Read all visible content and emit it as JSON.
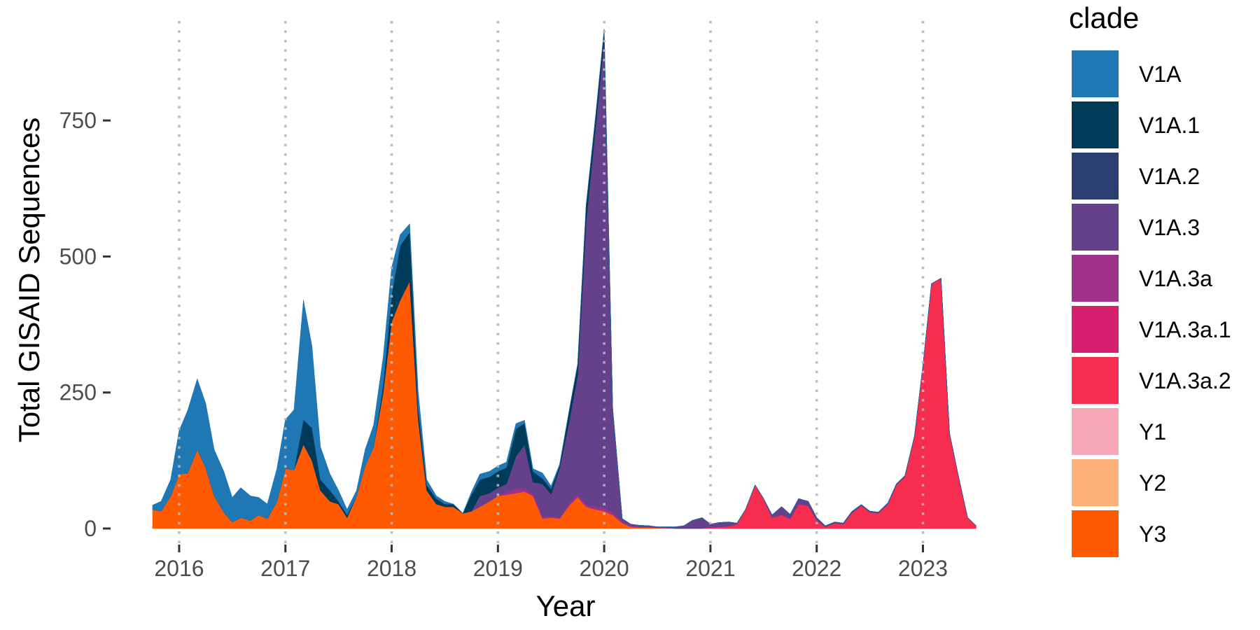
{
  "chart_data": {
    "type": "area",
    "stacked": true,
    "xlabel": "Year",
    "ylabel": "Total GISAID Sequences",
    "xlim": [
      2015.75,
      2023.55
    ],
    "ylim": [
      -45,
      920
    ],
    "x_ticks": [
      2016,
      2017,
      2018,
      2019,
      2020,
      2021,
      2022,
      2023
    ],
    "x_tick_labels": [
      "2016",
      "2017",
      "2018",
      "2019",
      "2020",
      "2021",
      "2022",
      "2023"
    ],
    "y_ticks": [
      0,
      250,
      500,
      750
    ],
    "y_tick_labels": [
      "0",
      "250",
      "500",
      "750"
    ],
    "grid": "vertical dotted at major x ticks",
    "legend": {
      "title": "clade",
      "position": "right"
    },
    "x": [
      2015.75,
      2015.83,
      2015.92,
      2016.0,
      2016.08,
      2016.17,
      2016.25,
      2016.33,
      2016.42,
      2016.5,
      2016.58,
      2016.67,
      2016.75,
      2016.83,
      2016.92,
      2017.0,
      2017.08,
      2017.17,
      2017.25,
      2017.33,
      2017.42,
      2017.5,
      2017.58,
      2017.67,
      2017.75,
      2017.83,
      2017.92,
      2018.0,
      2018.08,
      2018.17,
      2018.25,
      2018.33,
      2018.42,
      2018.5,
      2018.58,
      2018.67,
      2018.75,
      2018.83,
      2018.92,
      2019.0,
      2019.08,
      2019.17,
      2019.25,
      2019.33,
      2019.42,
      2019.5,
      2019.58,
      2019.67,
      2019.75,
      2019.83,
      2019.92,
      2020.0,
      2020.08,
      2020.17,
      2020.25,
      2020.33,
      2020.42,
      2020.5,
      2020.58,
      2020.67,
      2020.75,
      2020.83,
      2020.92,
      2021.0,
      2021.08,
      2021.17,
      2021.25,
      2021.33,
      2021.42,
      2021.5,
      2021.58,
      2021.67,
      2021.75,
      2021.83,
      2021.92,
      2022.0,
      2022.08,
      2022.17,
      2022.25,
      2022.33,
      2022.42,
      2022.5,
      2022.58,
      2022.67,
      2022.75,
      2022.83,
      2022.92,
      2023.0,
      2023.08,
      2023.17,
      2023.25,
      2023.33,
      2023.42,
      2023.5
    ],
    "series": [
      {
        "name": "Y3",
        "color": "#ff5a00",
        "values": [
          35,
          32,
          60,
          100,
          102,
          145,
          112,
          60,
          30,
          12,
          20,
          15,
          25,
          18,
          50,
          110,
          108,
          155,
          125,
          70,
          50,
          45,
          20,
          60,
          115,
          150,
          250,
          380,
          420,
          455,
          200,
          70,
          45,
          40,
          40,
          28,
          32,
          40,
          50,
          60,
          62,
          65,
          68,
          60,
          18,
          20,
          18,
          42,
          58,
          40,
          35,
          32,
          25,
          10,
          3,
          2,
          2,
          1,
          1,
          0,
          0,
          0,
          0,
          0,
          0,
          0,
          0,
          0,
          0,
          0,
          0,
          0,
          0,
          0,
          0,
          0,
          0,
          0,
          0,
          0,
          0,
          0,
          0,
          0,
          0,
          0,
          0,
          0,
          0,
          0,
          0,
          0,
          0,
          0
        ]
      },
      {
        "name": "Y2",
        "color": "#fdb27a",
        "values": [
          0,
          0,
          0,
          0,
          0,
          0,
          0,
          0,
          0,
          0,
          0,
          0,
          0,
          0,
          0,
          0,
          0,
          0,
          0,
          0,
          0,
          0,
          0,
          0,
          0,
          0,
          0,
          0,
          0,
          0,
          0,
          0,
          0,
          0,
          0,
          0,
          0,
          0,
          0,
          0,
          0,
          0,
          0,
          0,
          0,
          0,
          0,
          0,
          0,
          0,
          0,
          0,
          0,
          0,
          0,
          0,
          0,
          0,
          0,
          0,
          0,
          0,
          0,
          0,
          0,
          0,
          0,
          0,
          0,
          0,
          0,
          0,
          0,
          0,
          0,
          0,
          0,
          0,
          0,
          0,
          0,
          0,
          0,
          0,
          0,
          0,
          0,
          0,
          0,
          0,
          0,
          0,
          0,
          0
        ]
      },
      {
        "name": "Y1",
        "color": "#f6a8b8",
        "values": [
          0,
          0,
          0,
          0,
          0,
          0,
          0,
          0,
          0,
          0,
          0,
          0,
          0,
          0,
          0,
          0,
          0,
          0,
          0,
          0,
          0,
          0,
          0,
          0,
          0,
          0,
          0,
          0,
          0,
          0,
          0,
          0,
          0,
          0,
          0,
          0,
          0,
          0,
          0,
          0,
          0,
          0,
          0,
          0,
          0,
          0,
          0,
          0,
          0,
          0,
          0,
          0,
          0,
          0,
          0,
          0,
          0,
          0,
          0,
          0,
          0,
          0,
          0,
          0,
          0,
          0,
          0,
          0,
          0,
          0,
          0,
          0,
          0,
          0,
          0,
          0,
          0,
          0,
          0,
          0,
          0,
          0,
          0,
          0,
          0,
          0,
          0,
          0,
          0,
          0,
          0,
          0,
          0,
          0
        ]
      },
      {
        "name": "V1A.3a.2",
        "color": "#f72d4f",
        "values": [
          0,
          0,
          0,
          0,
          0,
          0,
          0,
          0,
          0,
          0,
          0,
          0,
          0,
          0,
          0,
          0,
          0,
          0,
          0,
          0,
          0,
          0,
          0,
          0,
          0,
          0,
          0,
          0,
          0,
          0,
          0,
          0,
          0,
          0,
          0,
          0,
          0,
          0,
          0,
          0,
          0,
          0,
          0,
          0,
          0,
          0,
          0,
          0,
          0,
          0,
          0,
          0,
          0,
          0,
          0,
          0,
          0,
          0,
          0,
          0,
          0,
          0,
          0,
          2,
          3,
          4,
          8,
          35,
          80,
          55,
          20,
          25,
          18,
          45,
          42,
          15,
          3,
          10,
          8,
          28,
          42,
          30,
          28,
          45,
          80,
          95,
          170,
          300,
          450,
          460,
          175,
          100,
          20,
          5
        ]
      },
      {
        "name": "V1A.3a.1",
        "color": "#d6206f",
        "values": [
          0,
          0,
          0,
          0,
          0,
          0,
          0,
          0,
          0,
          0,
          0,
          0,
          0,
          0,
          0,
          0,
          0,
          0,
          0,
          0,
          0,
          0,
          0,
          0,
          0,
          0,
          0,
          0,
          0,
          0,
          0,
          0,
          0,
          0,
          0,
          0,
          0,
          0,
          0,
          0,
          0,
          0,
          0,
          0,
          0,
          0,
          0,
          0,
          0,
          0,
          0,
          0,
          0,
          0,
          0,
          0,
          0,
          0,
          0,
          0,
          0,
          0,
          0,
          0,
          0,
          0,
          0,
          0,
          0,
          0,
          0,
          0,
          0,
          0,
          0,
          0,
          0,
          0,
          0,
          0,
          0,
          0,
          0,
          0,
          0,
          0,
          0,
          0,
          0,
          0,
          0,
          0,
          0,
          0
        ]
      },
      {
        "name": "V1A.3a",
        "color": "#9e3289",
        "values": [
          0,
          0,
          0,
          0,
          0,
          0,
          0,
          0,
          0,
          0,
          0,
          0,
          0,
          0,
          0,
          0,
          0,
          0,
          0,
          0,
          0,
          0,
          0,
          0,
          0,
          0,
          0,
          0,
          0,
          0,
          0,
          0,
          0,
          0,
          0,
          0,
          0,
          0,
          0,
          0,
          5,
          8,
          6,
          5,
          4,
          3,
          2,
          4,
          4,
          4,
          5,
          6,
          5,
          3,
          2,
          1,
          1,
          0,
          0,
          0,
          0,
          0,
          0,
          0,
          0,
          0,
          0,
          0,
          0,
          0,
          0,
          0,
          0,
          0,
          0,
          0,
          0,
          0,
          0,
          0,
          0,
          0,
          0,
          0,
          0,
          0,
          0,
          0,
          0,
          0,
          0,
          0,
          0,
          0
        ]
      },
      {
        "name": "V1A.3",
        "color": "#65418b",
        "values": [
          0,
          0,
          0,
          0,
          0,
          0,
          0,
          0,
          0,
          0,
          0,
          0,
          0,
          0,
          0,
          0,
          0,
          0,
          0,
          0,
          0,
          0,
          0,
          0,
          0,
          0,
          0,
          0,
          0,
          0,
          0,
          0,
          0,
          0,
          0,
          0,
          0,
          20,
          15,
          15,
          15,
          60,
          80,
          20,
          60,
          40,
          90,
          150,
          220,
          520,
          700,
          860,
          190,
          5,
          3,
          3,
          2,
          2,
          2,
          3,
          5,
          15,
          20,
          6,
          8,
          8,
          2,
          0,
          0,
          0,
          5,
          15,
          8,
          10,
          8,
          5,
          2,
          2,
          2,
          3,
          2,
          2,
          2,
          2,
          2,
          2,
          0,
          0,
          0,
          0,
          0,
          0,
          0,
          0
        ]
      },
      {
        "name": "V1A.2",
        "color": "#2b3f73",
        "values": [
          0,
          0,
          0,
          0,
          0,
          0,
          0,
          0,
          0,
          0,
          0,
          0,
          0,
          0,
          0,
          0,
          0,
          0,
          0,
          0,
          0,
          0,
          0,
          0,
          0,
          0,
          0,
          0,
          0,
          0,
          0,
          0,
          0,
          0,
          0,
          0,
          0,
          0,
          0,
          0,
          0,
          0,
          0,
          0,
          0,
          0,
          0,
          0,
          0,
          0,
          0,
          0,
          0,
          0,
          0,
          0,
          0,
          0,
          0,
          0,
          0,
          0,
          0,
          0,
          0,
          0,
          0,
          0,
          0,
          0,
          0,
          0,
          0,
          0,
          0,
          0,
          0,
          0,
          0,
          0,
          0,
          0,
          0,
          0,
          0,
          0,
          0,
          0,
          0,
          0,
          0,
          0,
          0,
          0
        ]
      },
      {
        "name": "V1A.1",
        "color": "#003a59",
        "values": [
          0,
          0,
          0,
          0,
          0,
          0,
          0,
          0,
          0,
          0,
          0,
          0,
          0,
          0,
          0,
          0,
          0,
          45,
          60,
          20,
          20,
          5,
          5,
          0,
          0,
          0,
          15,
          50,
          100,
          90,
          20,
          10,
          10,
          5,
          5,
          0,
          30,
          30,
          30,
          30,
          30,
          50,
          40,
          20,
          10,
          10,
          5,
          20,
          20,
          30,
          20,
          20,
          0,
          0,
          0,
          0,
          0,
          0,
          0,
          0,
          0,
          0,
          0,
          0,
          0,
          0,
          0,
          0,
          0,
          0,
          0,
          0,
          0,
          0,
          0,
          0,
          0,
          0,
          0,
          0,
          0,
          0,
          0,
          0,
          0,
          0,
          0,
          0,
          0,
          0,
          0,
          0,
          0,
          0
        ]
      },
      {
        "name": "V1A",
        "color": "#1f77b4",
        "values": [
          8,
          18,
          30,
          80,
          115,
          130,
          118,
          85,
          75,
          45,
          55,
          45,
          32,
          27,
          60,
          90,
          110,
          220,
          150,
          60,
          30,
          20,
          10,
          10,
          30,
          40,
          50,
          50,
          20,
          15,
          30,
          10,
          5,
          5,
          0,
          0,
          5,
          10,
          10,
          10,
          10,
          10,
          5,
          5,
          10,
          5,
          3,
          0,
          0,
          0,
          0,
          0,
          0,
          0,
          0,
          0,
          0,
          0,
          0,
          0,
          0,
          0,
          0,
          0,
          0,
          0,
          0,
          0,
          0,
          0,
          0,
          0,
          0,
          0,
          0,
          0,
          0,
          0,
          0,
          0,
          0,
          0,
          0,
          0,
          0,
          0,
          0,
          0,
          0,
          0,
          0,
          0,
          0,
          0
        ]
      }
    ],
    "legend_order": [
      "V1A",
      "V1A.1",
      "V1A.2",
      "V1A.3",
      "V1A.3a",
      "V1A.3a.1",
      "V1A.3a.2",
      "Y1",
      "Y2",
      "Y3"
    ]
  }
}
